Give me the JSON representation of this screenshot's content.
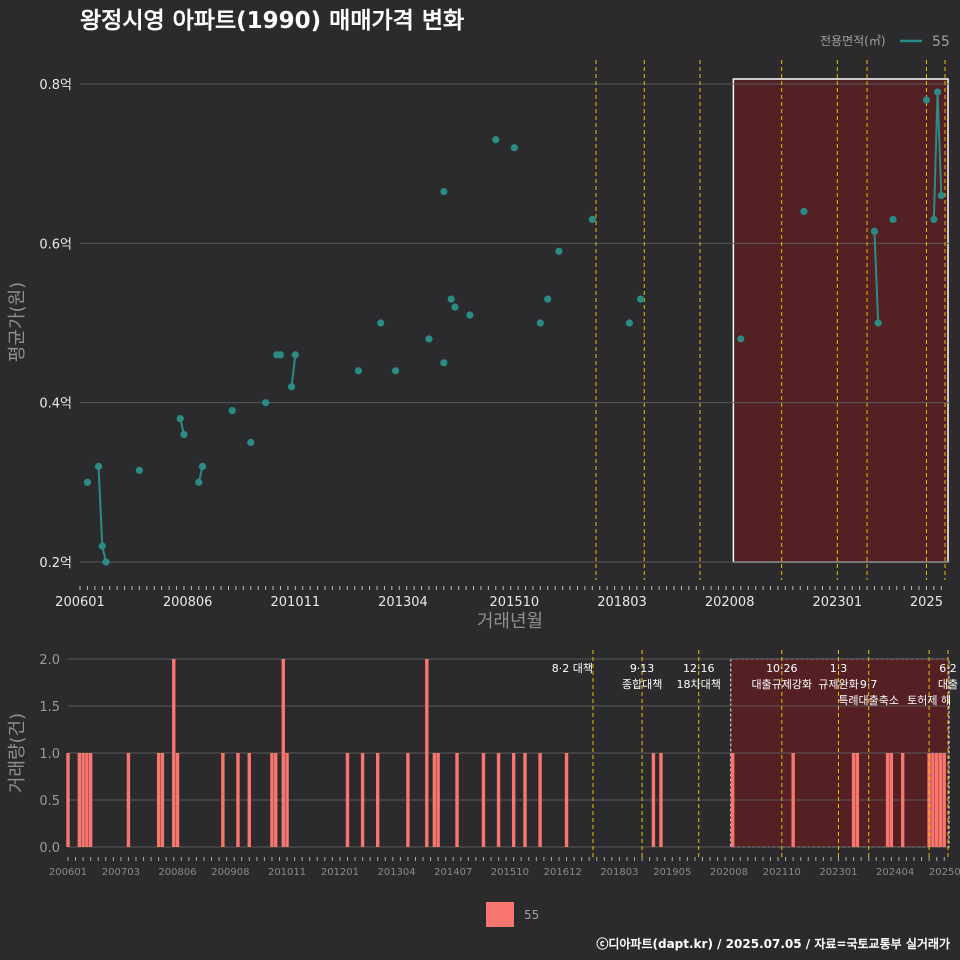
{
  "title": "왕정시영 아파트(1990) 매매가격 변화",
  "footer": "ⓒ디아파트(dapt.kr) / 2025.07.05 / 자료=국토교통부 실거래가",
  "colors": {
    "background": "#2b2b2d",
    "price_series": "#2a8c85",
    "volume_bars": "#f8766d",
    "policy_lines": "#e5c100",
    "highlight_fill": "#5a1f22",
    "highlight_border": "#ffffff"
  },
  "chart_data": [
    {
      "type": "scatter",
      "title": "왕정시영 아파트(1990) 매매가격 변화",
      "xlabel": "거래년월",
      "ylabel": "평균가(원)",
      "ylim": [
        0.2,
        0.8
      ],
      "y_ticks": [
        "0.2억",
        "0.4억",
        "0.6억",
        "0.8억"
      ],
      "x_ticks": [
        "200601",
        "200806",
        "201011",
        "201304",
        "201510",
        "201803",
        "202008",
        "202301",
        "2025"
      ],
      "legend": {
        "title": "전용면적(㎡)",
        "entries": [
          "55"
        ],
        "position": "top-right"
      },
      "series": [
        {
          "name": "55",
          "points": [
            [
              "2006-03",
              0.3
            ],
            [
              "2006-06",
              0.32
            ],
            [
              "2006-07",
              0.22
            ],
            [
              "2006-08",
              0.2
            ],
            [
              "2007-05",
              0.315
            ],
            [
              "2008-04",
              0.38
            ],
            [
              "2008-05",
              0.36
            ],
            [
              "2008-09",
              0.3
            ],
            [
              "2008-10",
              0.32
            ],
            [
              "2009-06",
              0.39
            ],
            [
              "2009-11",
              0.35
            ],
            [
              "2010-03",
              0.4
            ],
            [
              "2010-06",
              0.46
            ],
            [
              "2010-07",
              0.46
            ],
            [
              "2010-10",
              0.42
            ],
            [
              "2010-11",
              0.46
            ],
            [
              "2012-04",
              0.44
            ],
            [
              "2012-10",
              0.5
            ],
            [
              "2013-02",
              0.44
            ],
            [
              "2013-11",
              0.48
            ],
            [
              "2014-03",
              0.45
            ],
            [
              "2014-03",
              0.665
            ],
            [
              "2014-05",
              0.53
            ],
            [
              "2014-06",
              0.52
            ],
            [
              "2014-10",
              0.51
            ],
            [
              "2015-05",
              0.73
            ],
            [
              "2015-10",
              0.72
            ],
            [
              "2016-05",
              0.5
            ],
            [
              "2016-07",
              0.53
            ],
            [
              "2016-10",
              0.59
            ],
            [
              "2017-07",
              0.63
            ],
            [
              "2018-05",
              0.5
            ],
            [
              "2018-08",
              0.53
            ],
            [
              "2020-11",
              0.48
            ],
            [
              "2022-04",
              0.64
            ],
            [
              "2023-11",
              0.615
            ],
            [
              "2023-12",
              0.5
            ],
            [
              "2024-04",
              0.63
            ],
            [
              "2025-01",
              0.78
            ],
            [
              "2025-03",
              0.63
            ],
            [
              "2025-04",
              0.79
            ],
            [
              "2025-05",
              0.66
            ]
          ],
          "connected_groups": [
            [
              "2006-06",
              "2006-07",
              "2006-08"
            ],
            [
              "2008-04",
              "2008-05"
            ],
            [
              "2008-09",
              "2008-10"
            ],
            [
              "2010-10",
              "2010-11"
            ],
            [
              "2023-11",
              "2023-12"
            ],
            [
              "2025-03",
              "2025-04",
              "2025-05"
            ]
          ]
        }
      ],
      "policy_dates": [
        "2017-08",
        "2018-09",
        "2019-12",
        "2021-10",
        "2023-01",
        "2023-09",
        "2025-01",
        "2025-06"
      ],
      "highlight_range": [
        "2020-09",
        "2025-06"
      ]
    },
    {
      "type": "bar",
      "ylabel": "거래량(건)",
      "ylim": [
        0,
        2
      ],
      "y_ticks": [
        "0.0",
        "0.5",
        "1.0",
        "1.5",
        "2.0"
      ],
      "x_ticks": [
        "200601",
        "200703",
        "200806",
        "200908",
        "201011",
        "201201",
        "201304",
        "201407",
        "201510",
        "201612",
        "201803",
        "201905",
        "202008",
        "202110",
        "202301",
        "202404",
        "202506"
      ],
      "legend": {
        "entries": [
          "55"
        ],
        "position": "bottom"
      },
      "series": [
        {
          "name": "55",
          "values": [
            [
              "2006-01",
              1
            ],
            [
              "2006-04",
              1
            ],
            [
              "2006-05",
              1
            ],
            [
              "2006-06",
              1
            ],
            [
              "2006-07",
              1
            ],
            [
              "2007-05",
              1
            ],
            [
              "2008-01",
              1
            ],
            [
              "2008-02",
              1
            ],
            [
              "2008-05",
              2
            ],
            [
              "2008-06",
              1
            ],
            [
              "2009-06",
              1
            ],
            [
              "2009-10",
              1
            ],
            [
              "2010-01",
              1
            ],
            [
              "2010-07",
              1
            ],
            [
              "2010-08",
              1
            ],
            [
              "2010-10",
              2
            ],
            [
              "2010-11",
              1
            ],
            [
              "2012-03",
              1
            ],
            [
              "2012-07",
              1
            ],
            [
              "2012-11",
              1
            ],
            [
              "2013-07",
              1
            ],
            [
              "2013-12",
              2
            ],
            [
              "2014-02",
              1
            ],
            [
              "2014-03",
              1
            ],
            [
              "2014-08",
              1
            ],
            [
              "2015-03",
              1
            ],
            [
              "2015-07",
              1
            ],
            [
              "2015-11",
              1
            ],
            [
              "2016-02",
              1
            ],
            [
              "2016-06",
              1
            ],
            [
              "2017-01",
              1
            ],
            [
              "2018-12",
              1
            ],
            [
              "2019-02",
              1
            ],
            [
              "2020-09",
              1
            ],
            [
              "2022-01",
              1
            ],
            [
              "2023-05",
              1
            ],
            [
              "2023-06",
              1
            ],
            [
              "2024-02",
              1
            ],
            [
              "2024-03",
              1
            ],
            [
              "2024-06",
              1
            ],
            [
              "2025-01",
              1
            ],
            [
              "2025-02",
              1
            ],
            [
              "2025-03",
              1
            ],
            [
              "2025-04",
              1
            ],
            [
              "2025-05",
              1
            ]
          ]
        }
      ],
      "annotations": [
        {
          "date": "2017-08",
          "lines": [
            "8·2 대책"
          ]
        },
        {
          "date": "2018-09",
          "lines": [
            "9·13",
            "종합대책"
          ]
        },
        {
          "date": "2019-12",
          "lines": [
            "12·16",
            "18차대책"
          ]
        },
        {
          "date": "2021-10",
          "lines": [
            "10·26",
            "대출규제강화"
          ]
        },
        {
          "date": "2023-01",
          "lines": [
            "1·3",
            "규제완화"
          ]
        },
        {
          "date": "2023-09",
          "lines": [
            "",
            "9·7",
            "특례대출축소"
          ]
        },
        {
          "date": "2025-01",
          "lines": [
            "",
            "",
            "토허제 해"
          ]
        },
        {
          "date": "2025-06",
          "lines": [
            "6·2",
            "대출"
          ]
        }
      ],
      "highlight_range": [
        "2020-09",
        "2025-06"
      ]
    }
  ]
}
